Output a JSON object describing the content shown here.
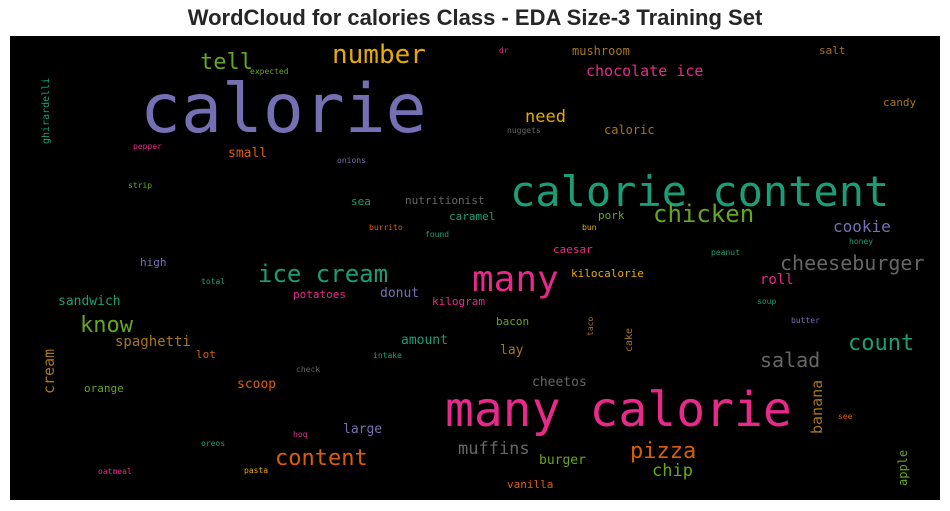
{
  "chart_data": {
    "type": "wordcloud",
    "title": "WordCloud for calories Class - EDA Size-3 Training Set",
    "words": [
      {
        "text": "calorie",
        "color": "#7570b3"
      },
      {
        "text": "many calorie",
        "color": "#e7298a"
      },
      {
        "text": "calorie content",
        "color": "#1b9e77"
      },
      {
        "text": "many",
        "color": "#e7298a"
      },
      {
        "text": "number",
        "color": "#e6ab02"
      },
      {
        "text": "ice cream",
        "color": "#1b9e77"
      },
      {
        "text": "chicken",
        "color": "#66a61e"
      },
      {
        "text": "cheeseburger",
        "color": "#666666"
      },
      {
        "text": "count",
        "color": "#1b9e77"
      },
      {
        "text": "salad",
        "color": "#666666"
      },
      {
        "text": "know",
        "color": "#66a61e"
      },
      {
        "text": "content",
        "color": "#d95f02"
      },
      {
        "text": "pizza",
        "color": "#d95f02"
      },
      {
        "text": "tell",
        "color": "#66a61e"
      },
      {
        "text": "muffins",
        "color": "#666666"
      },
      {
        "text": "need",
        "color": "#e6ab02"
      },
      {
        "text": "cookie",
        "color": "#7570b3"
      },
      {
        "text": "chip",
        "color": "#66a61e"
      },
      {
        "text": "chocolate ice",
        "color": "#e7298a"
      },
      {
        "text": "roll",
        "color": "#e7298a"
      },
      {
        "text": "cream",
        "color": "#a6761d"
      },
      {
        "text": "banana",
        "color": "#a6761d"
      },
      {
        "text": "spaghetti",
        "color": "#a6761d"
      },
      {
        "text": "sandwich",
        "color": "#1b9e77"
      },
      {
        "text": "amount",
        "color": "#1b9e77"
      },
      {
        "text": "lay",
        "color": "#a6761d"
      },
      {
        "text": "cheetos",
        "color": "#666666"
      },
      {
        "text": "burger",
        "color": "#66a61e"
      },
      {
        "text": "scoop",
        "color": "#d95f02"
      },
      {
        "text": "large",
        "color": "#7570b3"
      },
      {
        "text": "small",
        "color": "#d95f02"
      },
      {
        "text": "donut",
        "color": "#7570b3"
      },
      {
        "text": "mushroom",
        "color": "#a6761d"
      },
      {
        "text": "caloric",
        "color": "#a6761d"
      },
      {
        "text": "nutritionist",
        "color": "#666666"
      },
      {
        "text": "caramel",
        "color": "#1b9e77"
      },
      {
        "text": "kilocalorie",
        "color": "#e6ab02"
      },
      {
        "text": "kilogram",
        "color": "#e7298a"
      },
      {
        "text": "potatoes",
        "color": "#e7298a"
      },
      {
        "text": "caesar",
        "color": "#e7298a"
      },
      {
        "text": "sea",
        "color": "#1b9e77"
      },
      {
        "text": "pork",
        "color": "#66a61e"
      },
      {
        "text": "bacon",
        "color": "#66a61e"
      },
      {
        "text": "high",
        "color": "#7570b3"
      },
      {
        "text": "orange",
        "color": "#66a61e"
      },
      {
        "text": "lot",
        "color": "#d95f02"
      },
      {
        "text": "apple",
        "color": "#66a61e"
      },
      {
        "text": "vanilla",
        "color": "#d95f02"
      },
      {
        "text": "salt",
        "color": "#a6761d"
      },
      {
        "text": "candy",
        "color": "#a6761d"
      },
      {
        "text": "ghirardelli",
        "color": "#1b9e77"
      },
      {
        "text": "cake",
        "color": "#a6761d"
      },
      {
        "text": "taco",
        "color": "#a6761d"
      },
      {
        "text": "expected",
        "color": "#66a61e"
      },
      {
        "text": "dr",
        "color": "#e7298a"
      },
      {
        "text": "nuggets",
        "color": "#666666"
      },
      {
        "text": "pepper",
        "color": "#e7298a"
      },
      {
        "text": "onions",
        "color": "#7570b3"
      },
      {
        "text": "strip",
        "color": "#66a61e"
      },
      {
        "text": "burrito",
        "color": "#d95f02"
      },
      {
        "text": "found",
        "color": "#1b9e77"
      },
      {
        "text": "bun",
        "color": "#e6ab02"
      },
      {
        "text": "honey",
        "color": "#1b9e77"
      },
      {
        "text": "peanut",
        "color": "#1b9e77"
      },
      {
        "text": "total",
        "color": "#1b9e77"
      },
      {
        "text": "soup",
        "color": "#1b9e77"
      },
      {
        "text": "butter",
        "color": "#7570b3"
      },
      {
        "text": "intake",
        "color": "#1b9e77"
      },
      {
        "text": "check",
        "color": "#666666"
      },
      {
        "text": "see",
        "color": "#d95f02"
      },
      {
        "text": "oreos",
        "color": "#1b9e77"
      },
      {
        "text": "hoq",
        "color": "#e7298a"
      },
      {
        "text": "oatmeal",
        "color": "#e7298a"
      },
      {
        "text": "pasta",
        "color": "#e6ab02"
      }
    ]
  }
}
